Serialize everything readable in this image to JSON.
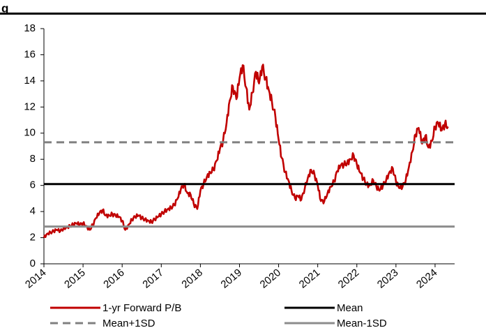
{
  "heading": "g",
  "chart_data": {
    "type": "line",
    "title": "",
    "xlabel": "",
    "ylabel": "",
    "xlim": [
      2014.0,
      2024.5
    ],
    "ylim": [
      0,
      18
    ],
    "y_ticks": [
      0,
      2,
      4,
      6,
      8,
      10,
      12,
      14,
      16,
      18
    ],
    "x_ticks": [
      "2014",
      "2015",
      "2016",
      "2017",
      "2018",
      "2019",
      "2020",
      "2021",
      "2022",
      "2023",
      "2024"
    ],
    "grid": false,
    "legend_position": "bottom",
    "series": [
      {
        "name": "1-yr Forward P/B",
        "color": "#c00000",
        "style": "solid",
        "points": [
          [
            2014.0,
            2.0
          ],
          [
            2014.08,
            2.3
          ],
          [
            2014.17,
            2.4
          ],
          [
            2014.25,
            2.5
          ],
          [
            2014.33,
            2.6
          ],
          [
            2014.42,
            2.5
          ],
          [
            2014.5,
            2.7
          ],
          [
            2014.58,
            2.8
          ],
          [
            2014.67,
            2.9
          ],
          [
            2014.75,
            3.0
          ],
          [
            2014.83,
            3.1
          ],
          [
            2014.92,
            3.0
          ],
          [
            2015.0,
            3.1
          ],
          [
            2015.08,
            2.9
          ],
          [
            2015.17,
            2.6
          ],
          [
            2015.25,
            3.0
          ],
          [
            2015.33,
            3.5
          ],
          [
            2015.42,
            3.9
          ],
          [
            2015.5,
            4.1
          ],
          [
            2015.58,
            3.7
          ],
          [
            2015.67,
            3.7
          ],
          [
            2015.75,
            3.8
          ],
          [
            2015.83,
            3.7
          ],
          [
            2015.92,
            3.6
          ],
          [
            2016.0,
            3.3
          ],
          [
            2016.08,
            2.6
          ],
          [
            2016.17,
            3.0
          ],
          [
            2016.25,
            3.4
          ],
          [
            2016.33,
            3.6
          ],
          [
            2016.42,
            3.7
          ],
          [
            2016.5,
            3.5
          ],
          [
            2016.58,
            3.4
          ],
          [
            2016.67,
            3.3
          ],
          [
            2016.75,
            3.2
          ],
          [
            2016.83,
            3.4
          ],
          [
            2016.92,
            3.6
          ],
          [
            2017.0,
            3.8
          ],
          [
            2017.08,
            4.0
          ],
          [
            2017.17,
            4.2
          ],
          [
            2017.25,
            4.3
          ],
          [
            2017.33,
            4.5
          ],
          [
            2017.42,
            5.0
          ],
          [
            2017.5,
            5.7
          ],
          [
            2017.58,
            6.1
          ],
          [
            2017.67,
            5.4
          ],
          [
            2017.75,
            5.3
          ],
          [
            2017.83,
            4.6
          ],
          [
            2017.92,
            4.2
          ],
          [
            2018.0,
            5.6
          ],
          [
            2018.08,
            6.1
          ],
          [
            2018.17,
            6.7
          ],
          [
            2018.25,
            7.0
          ],
          [
            2018.33,
            7.2
          ],
          [
            2018.42,
            7.9
          ],
          [
            2018.5,
            8.8
          ],
          [
            2018.58,
            9.4
          ],
          [
            2018.67,
            10.8
          ],
          [
            2018.75,
            12.5
          ],
          [
            2018.83,
            13.6
          ],
          [
            2018.92,
            12.6
          ],
          [
            2019.0,
            14.2
          ],
          [
            2019.08,
            15.2
          ],
          [
            2019.17,
            13.5
          ],
          [
            2019.25,
            11.8
          ],
          [
            2019.33,
            13.1
          ],
          [
            2019.42,
            14.7
          ],
          [
            2019.5,
            13.8
          ],
          [
            2019.58,
            15.1
          ],
          [
            2019.67,
            14.2
          ],
          [
            2019.75,
            13.3
          ],
          [
            2019.83,
            12.4
          ],
          [
            2019.92,
            11.2
          ],
          [
            2020.0,
            9.5
          ],
          [
            2020.08,
            8.1
          ],
          [
            2020.17,
            7.0
          ],
          [
            2020.25,
            6.4
          ],
          [
            2020.33,
            5.6
          ],
          [
            2020.42,
            5.0
          ],
          [
            2020.5,
            5.2
          ],
          [
            2020.58,
            4.9
          ],
          [
            2020.67,
            5.8
          ],
          [
            2020.75,
            6.6
          ],
          [
            2020.83,
            7.2
          ],
          [
            2020.92,
            6.8
          ],
          [
            2021.0,
            6.0
          ],
          [
            2021.08,
            4.8
          ],
          [
            2021.17,
            4.8
          ],
          [
            2021.25,
            5.4
          ],
          [
            2021.33,
            5.9
          ],
          [
            2021.42,
            6.3
          ],
          [
            2021.5,
            7.1
          ],
          [
            2021.58,
            7.5
          ],
          [
            2021.67,
            7.6
          ],
          [
            2021.75,
            7.7
          ],
          [
            2021.83,
            8.0
          ],
          [
            2021.92,
            8.3
          ],
          [
            2022.0,
            7.6
          ],
          [
            2022.08,
            7.0
          ],
          [
            2022.17,
            6.5
          ],
          [
            2022.25,
            6.1
          ],
          [
            2022.33,
            6.0
          ],
          [
            2022.42,
            6.4
          ],
          [
            2022.5,
            5.9
          ],
          [
            2022.58,
            5.6
          ],
          [
            2022.67,
            6.0
          ],
          [
            2022.75,
            6.4
          ],
          [
            2022.83,
            7.0
          ],
          [
            2022.92,
            7.3
          ],
          [
            2023.0,
            6.3
          ],
          [
            2023.08,
            5.8
          ],
          [
            2023.17,
            5.9
          ],
          [
            2023.25,
            6.4
          ],
          [
            2023.33,
            7.4
          ],
          [
            2023.42,
            8.6
          ],
          [
            2023.5,
            9.9
          ],
          [
            2023.58,
            10.4
          ],
          [
            2023.67,
            9.2
          ],
          [
            2023.75,
            9.8
          ],
          [
            2023.83,
            8.9
          ],
          [
            2023.92,
            9.4
          ],
          [
            2024.0,
            10.5
          ],
          [
            2024.08,
            10.8
          ],
          [
            2024.17,
            10.2
          ],
          [
            2024.25,
            10.7
          ],
          [
            2024.33,
            10.5
          ]
        ]
      },
      {
        "name": "Mean",
        "color": "#000000",
        "style": "solid",
        "value": 6.1
      },
      {
        "name": "Mean+1SD",
        "color": "#808080",
        "style": "dashed",
        "value": 9.3
      },
      {
        "name": "Mean-1SD",
        "color": "#8c8c8c",
        "style": "solid",
        "value": 2.85
      }
    ]
  }
}
